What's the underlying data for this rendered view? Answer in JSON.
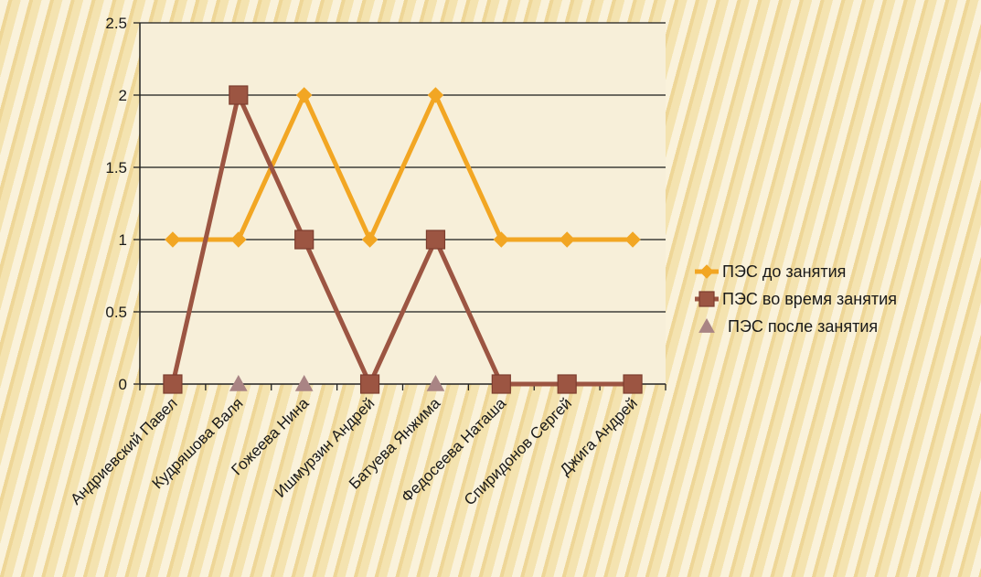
{
  "chart_data": {
    "type": "line",
    "categories": [
      "Андриевский Павел",
      "Кудряшова Валя",
      "Гожеева Нина",
      "Ишмурзин Андрей",
      "Батуева Янжима",
      "Федосеева Наташа",
      "Спиридонов Сергей",
      "Джига Андрей"
    ],
    "series": [
      {
        "name": "ПЭС до занятия",
        "values": [
          1,
          1,
          2,
          1,
          2,
          1,
          1,
          1
        ],
        "color": "#f2a623",
        "marker": "diamond"
      },
      {
        "name": "ПЭС во время занятия",
        "values": [
          0,
          2,
          1,
          0,
          1,
          0,
          0,
          0
        ],
        "color": "#9c5542",
        "marker": "square"
      },
      {
        "name": "ПЭС после занятия",
        "values": [
          0,
          0,
          0,
          0,
          0,
          0,
          0,
          0
        ],
        "color": "#a98484",
        "marker": "triangle"
      }
    ],
    "yticks": [
      "0",
      "0.5",
      "1",
      "1.5",
      "2",
      "2.5"
    ],
    "ylim": [
      0,
      2.5
    ],
    "grid": true,
    "legend_position": "right",
    "plot_background": "#f7efd9"
  }
}
